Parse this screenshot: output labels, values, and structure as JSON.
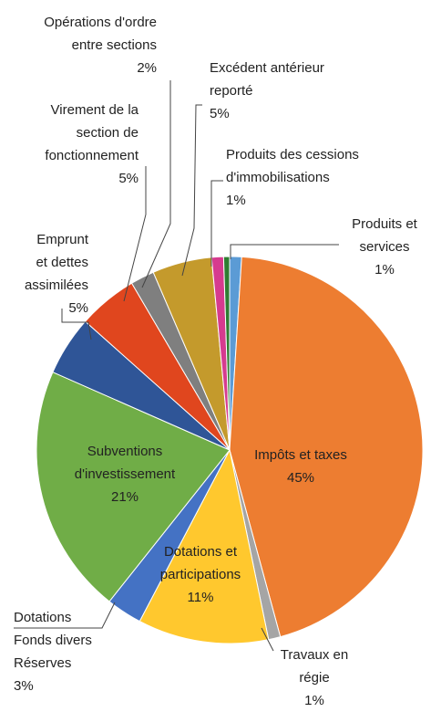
{
  "chart_data": {
    "type": "pie",
    "categories": [
      "Produits et services",
      "Impôts et taxes",
      "Travaux en régie",
      "Dotations et participations",
      "Dotations Fonds divers Réserves",
      "Subventions d'investissement",
      "Emprunt et dettes assimilées",
      "Virement de la section de fonctionnement",
      "Opérations d'ordre entre sections",
      "Excédent antérieur reporté",
      "Produits des cessions d'immobilisations",
      null
    ],
    "values": [
      1,
      45,
      1,
      11,
      3,
      21,
      5,
      5,
      2,
      5,
      1,
      0.5
    ],
    "value_labels": [
      "1%",
      "45%",
      "1%",
      "11%",
      "3%",
      "21%",
      "5%",
      "5%",
      "2%",
      "5%",
      "1%",
      null
    ],
    "colors": [
      "#5b9bd5",
      "#ed7d31",
      "#a5a5a5",
      "#ffc82e",
      "#4472c4",
      "#70ad47",
      "#2f5597",
      "#e0461e",
      "#7f7f7f",
      "#c49a2c",
      "#d63b8f",
      "#2e7d32"
    ]
  }
}
